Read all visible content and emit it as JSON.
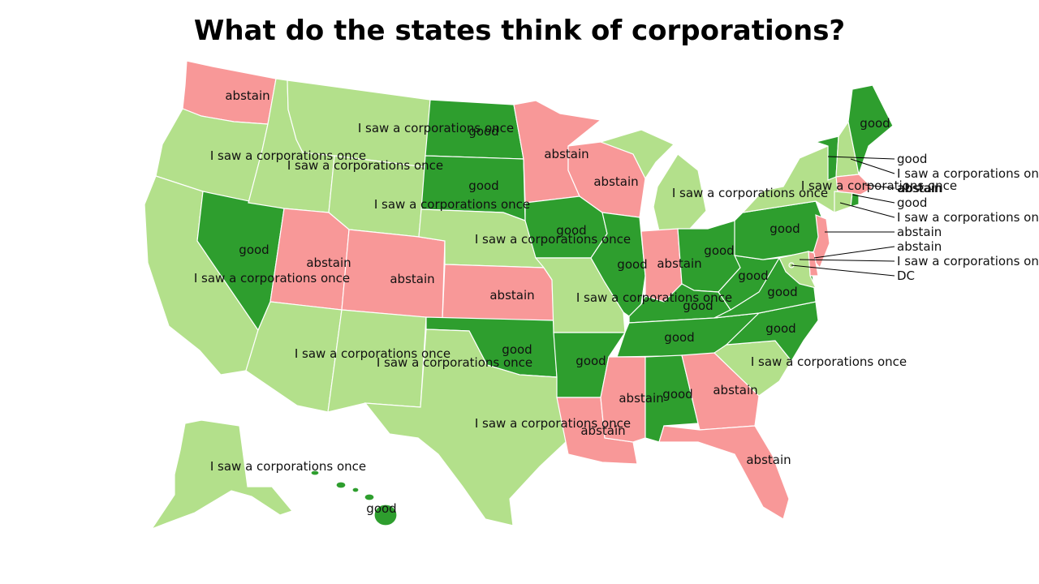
{
  "title": "What do the states think of corporations?",
  "colors": {
    "good": "#2e9e2e",
    "abstain": "#f89898",
    "saw": "#b3e08b"
  },
  "categories": {
    "good": "good",
    "abstain": "abstain",
    "saw": "I saw a corporations once"
  },
  "states": [
    {
      "id": "WA",
      "name": "Washington",
      "category": "abstain"
    },
    {
      "id": "OR",
      "name": "Oregon",
      "category": "saw"
    },
    {
      "id": "CA",
      "name": "California",
      "category": "saw"
    },
    {
      "id": "NV",
      "name": "Nevada",
      "category": "good"
    },
    {
      "id": "ID",
      "name": "Idaho",
      "category": "saw"
    },
    {
      "id": "MT",
      "name": "Montana",
      "category": "saw"
    },
    {
      "id": "WY",
      "name": "Wyoming",
      "category": "saw"
    },
    {
      "id": "UT",
      "name": "Utah",
      "category": "abstain"
    },
    {
      "id": "AZ",
      "name": "Arizona",
      "category": "saw"
    },
    {
      "id": "CO",
      "name": "Colorado",
      "category": "abstain"
    },
    {
      "id": "NM",
      "name": "New Mexico",
      "category": "saw"
    },
    {
      "id": "ND",
      "name": "North Dakota",
      "category": "good"
    },
    {
      "id": "SD",
      "name": "South Dakota",
      "category": "good"
    },
    {
      "id": "NE",
      "name": "Nebraska",
      "category": "saw"
    },
    {
      "id": "KS",
      "name": "Kansas",
      "category": "abstain"
    },
    {
      "id": "OK",
      "name": "Oklahoma",
      "category": "good"
    },
    {
      "id": "TX",
      "name": "Texas",
      "category": "saw"
    },
    {
      "id": "MN",
      "name": "Minnesota",
      "category": "abstain"
    },
    {
      "id": "IA",
      "name": "Iowa",
      "category": "good"
    },
    {
      "id": "MO",
      "name": "Missouri",
      "category": "saw"
    },
    {
      "id": "AR",
      "name": "Arkansas",
      "category": "good"
    },
    {
      "id": "LA",
      "name": "Louisiana",
      "category": "abstain"
    },
    {
      "id": "WI",
      "name": "Wisconsin",
      "category": "abstain"
    },
    {
      "id": "IL",
      "name": "Illinois",
      "category": "good"
    },
    {
      "id": "MI",
      "name": "Michigan",
      "category": "saw"
    },
    {
      "id": "IN",
      "name": "Indiana",
      "category": "abstain"
    },
    {
      "id": "OH",
      "name": "Ohio",
      "category": "good"
    },
    {
      "id": "KY",
      "name": "Kentucky",
      "category": "good"
    },
    {
      "id": "TN",
      "name": "Tennessee",
      "category": "good"
    },
    {
      "id": "MS",
      "name": "Mississippi",
      "category": "abstain"
    },
    {
      "id": "AL",
      "name": "Alabama",
      "category": "good"
    },
    {
      "id": "GA",
      "name": "Georgia",
      "category": "abstain"
    },
    {
      "id": "FL",
      "name": "Florida",
      "category": "abstain"
    },
    {
      "id": "SC",
      "name": "South Carolina",
      "category": "saw"
    },
    {
      "id": "NC",
      "name": "North Carolina",
      "category": "good"
    },
    {
      "id": "VA",
      "name": "Virginia",
      "category": "good"
    },
    {
      "id": "WV",
      "name": "West Virginia",
      "category": "good"
    },
    {
      "id": "PA",
      "name": "Pennsylvania",
      "category": "good"
    },
    {
      "id": "NY",
      "name": "New York",
      "category": "saw"
    },
    {
      "id": "VT",
      "name": "Vermont",
      "category": "good"
    },
    {
      "id": "NH",
      "name": "New Hampshire",
      "category": "saw"
    },
    {
      "id": "ME",
      "name": "Maine",
      "category": "good"
    },
    {
      "id": "MA",
      "name": "Massachusetts",
      "category": "abstain"
    },
    {
      "id": "RI",
      "name": "Rhode Island",
      "category": "good"
    },
    {
      "id": "CT",
      "name": "Connecticut",
      "category": "saw"
    },
    {
      "id": "NJ",
      "name": "New Jersey",
      "category": "abstain"
    },
    {
      "id": "DE",
      "name": "Delaware",
      "category": "abstain"
    },
    {
      "id": "MD",
      "name": "Maryland",
      "category": "saw"
    },
    {
      "id": "DC",
      "name": "DC",
      "category": "saw"
    },
    {
      "id": "AK",
      "name": "Alaska",
      "category": "saw"
    },
    {
      "id": "HI",
      "name": "Hawaii",
      "category": "good"
    }
  ],
  "callouts": [
    {
      "text": "good"
    },
    {
      "text": "I saw a corporations once"
    },
    {
      "text": "abstain"
    },
    {
      "text": "good"
    },
    {
      "text": "I saw a corporations once"
    },
    {
      "text": "abstain"
    },
    {
      "text": "abstain"
    },
    {
      "text": "I saw a corporations once"
    },
    {
      "text": "DC"
    }
  ]
}
